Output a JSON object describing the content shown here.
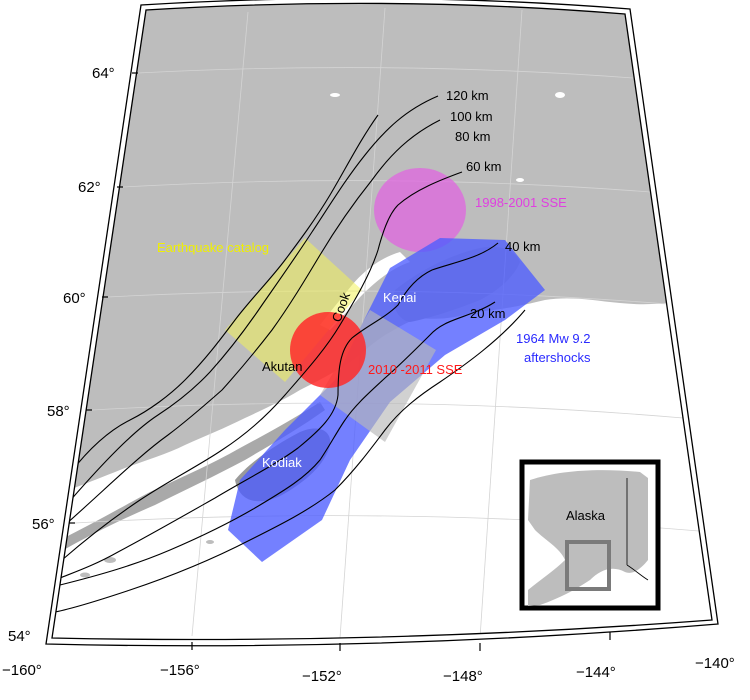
{
  "map": {
    "lat_labels": [
      "64°",
      "62°",
      "60°",
      "58°",
      "56°",
      "54°"
    ],
    "lon_labels": [
      "−160°",
      "−156°",
      "−152°",
      "−148°",
      "−144°",
      "−140°"
    ],
    "contours": [
      {
        "label": "120 km",
        "depth_km": 120
      },
      {
        "label": "100 km",
        "depth_km": 100
      },
      {
        "label": "80 km",
        "depth_km": 80
      },
      {
        "label": "60 km",
        "depth_km": 60
      },
      {
        "label": "40 km",
        "depth_km": 40
      },
      {
        "label": "20 km",
        "depth_km": 20
      }
    ],
    "annotations": {
      "sse_1998": "1998-2001 SSE",
      "earthquake_catalog": "Earthquake catalog",
      "cook": "Cook",
      "kenai": "Kenai",
      "akutan": "Akutan",
      "sse_2010": "2010 -2011 SSE",
      "aftershocks_line1": "1964 Mw 9.2",
      "aftershocks_line2": "aftershocks",
      "kodiak": "Kodiak"
    },
    "inset": {
      "label": "Alaska"
    },
    "colors": {
      "land": "#bdbdbd",
      "sea": "#ffffff",
      "sse_1998": "#e066e0",
      "earthquake_catalog": "#f2f25a",
      "sse_2010": "#ff2a2a",
      "aftershocks": "#4d5cff",
      "contour": "#000000",
      "label_white": "#ffffff",
      "label_yellow": "#f0f000",
      "label_magenta": "#e040e0",
      "label_red": "#ff1a1a",
      "label_blue": "#2a2aff"
    }
  }
}
